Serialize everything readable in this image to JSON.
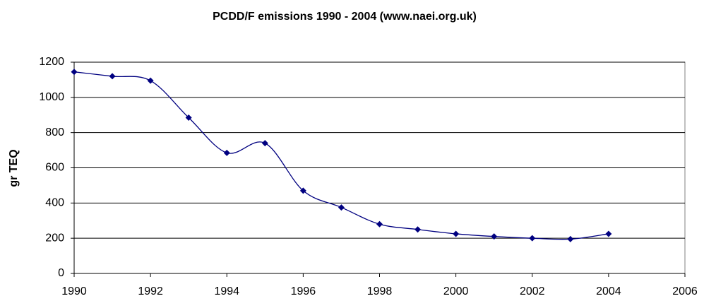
{
  "chart_data": {
    "type": "line",
    "title": "PCDD/F emissions 1990 - 2004 (www.naei.org.uk)",
    "y_label": "gr TEQ",
    "x": [
      1990,
      1991,
      1992,
      1993,
      1994,
      1995,
      1996,
      1997,
      1998,
      1999,
      2000,
      2001,
      2002,
      2003,
      2004
    ],
    "series": [
      {
        "color": "#000080",
        "values": [
          1145,
          1120,
          1095,
          885,
          685,
          740,
          470,
          375,
          280,
          250,
          225,
          210,
          200,
          195,
          225
        ]
      }
    ],
    "xlim": [
      1990,
      2006
    ],
    "xticks": [
      1990,
      1992,
      1994,
      1996,
      1998,
      2000,
      2002,
      2004,
      2006
    ],
    "ylim": [
      0,
      1200
    ],
    "yticks": [
      0,
      200,
      400,
      600,
      800,
      1000,
      1200
    ],
    "grid": true,
    "smooth": true,
    "markers": "diamond"
  }
}
